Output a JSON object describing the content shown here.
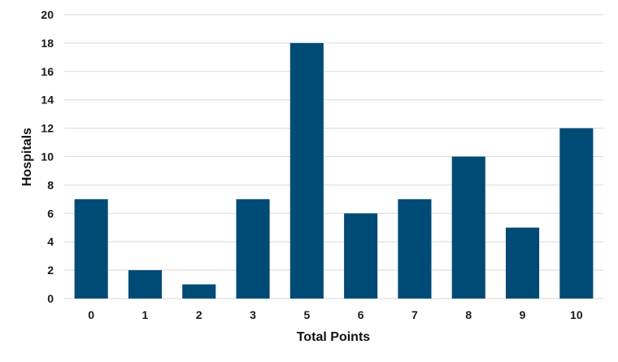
{
  "chart_data": {
    "type": "bar",
    "categories": [
      "0",
      "1",
      "2",
      "3",
      "5",
      "6",
      "7",
      "8",
      "9",
      "10"
    ],
    "values": [
      7,
      2,
      1,
      7,
      18,
      6,
      7,
      10,
      5,
      12
    ],
    "xlabel": "Total Points",
    "ylabel": "Hospitals",
    "ylim": [
      0,
      20
    ],
    "yticks": [
      0,
      2,
      4,
      6,
      8,
      10,
      12,
      14,
      16,
      18,
      20
    ],
    "grid": true,
    "bar_color": "#004b76"
  }
}
